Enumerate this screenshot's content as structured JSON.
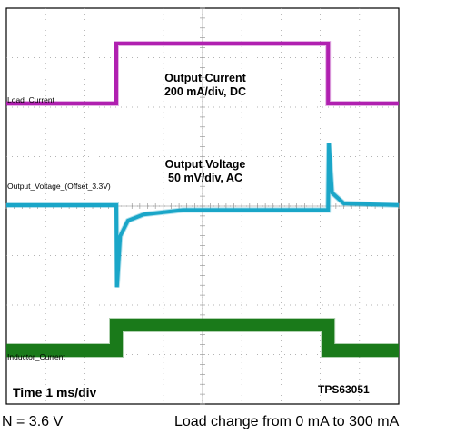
{
  "chart_data": {
    "type": "line",
    "x_unit_label": "Time 1 ms/div",
    "x_divisions": 10,
    "y_divisions": 8,
    "grid": true,
    "part_number": "TPS63051",
    "series": [
      {
        "name": "Load_Current",
        "color": "#b020b0",
        "annotation_line1": "Output Current",
        "annotation_line2": "200 mA/div, DC",
        "x": [
          0,
          2.8,
          2.8,
          8.2,
          8.2,
          10
        ],
        "y": [
          0,
          0,
          300,
          300,
          0,
          0
        ]
      },
      {
        "name": "Output_Voltage_(Offset_3.3V)",
        "color": "#1aa6c8",
        "annotation_line1": "Output Voltage",
        "annotation_line2": "50 mV/div, AC",
        "x": [
          0,
          2.8,
          2.82,
          2.9,
          3.1,
          3.5,
          4.5,
          8.2,
          8.22,
          8.3,
          8.6,
          10
        ],
        "y": [
          0,
          0,
          -133,
          -50,
          -25,
          -15,
          -8,
          -8,
          100,
          20,
          3,
          0
        ]
      },
      {
        "name": "Inductor_Current",
        "color": "#1a7a1a",
        "x": [
          0,
          2.8,
          2.8,
          8.2,
          8.2,
          10
        ],
        "y": [
          0.3,
          0.3,
          1.0,
          1.0,
          0.3,
          0.3
        ]
      }
    ]
  },
  "captions": {
    "left": "N = 3.6 V",
    "right": "Load change from 0 mA to 300 mA"
  }
}
